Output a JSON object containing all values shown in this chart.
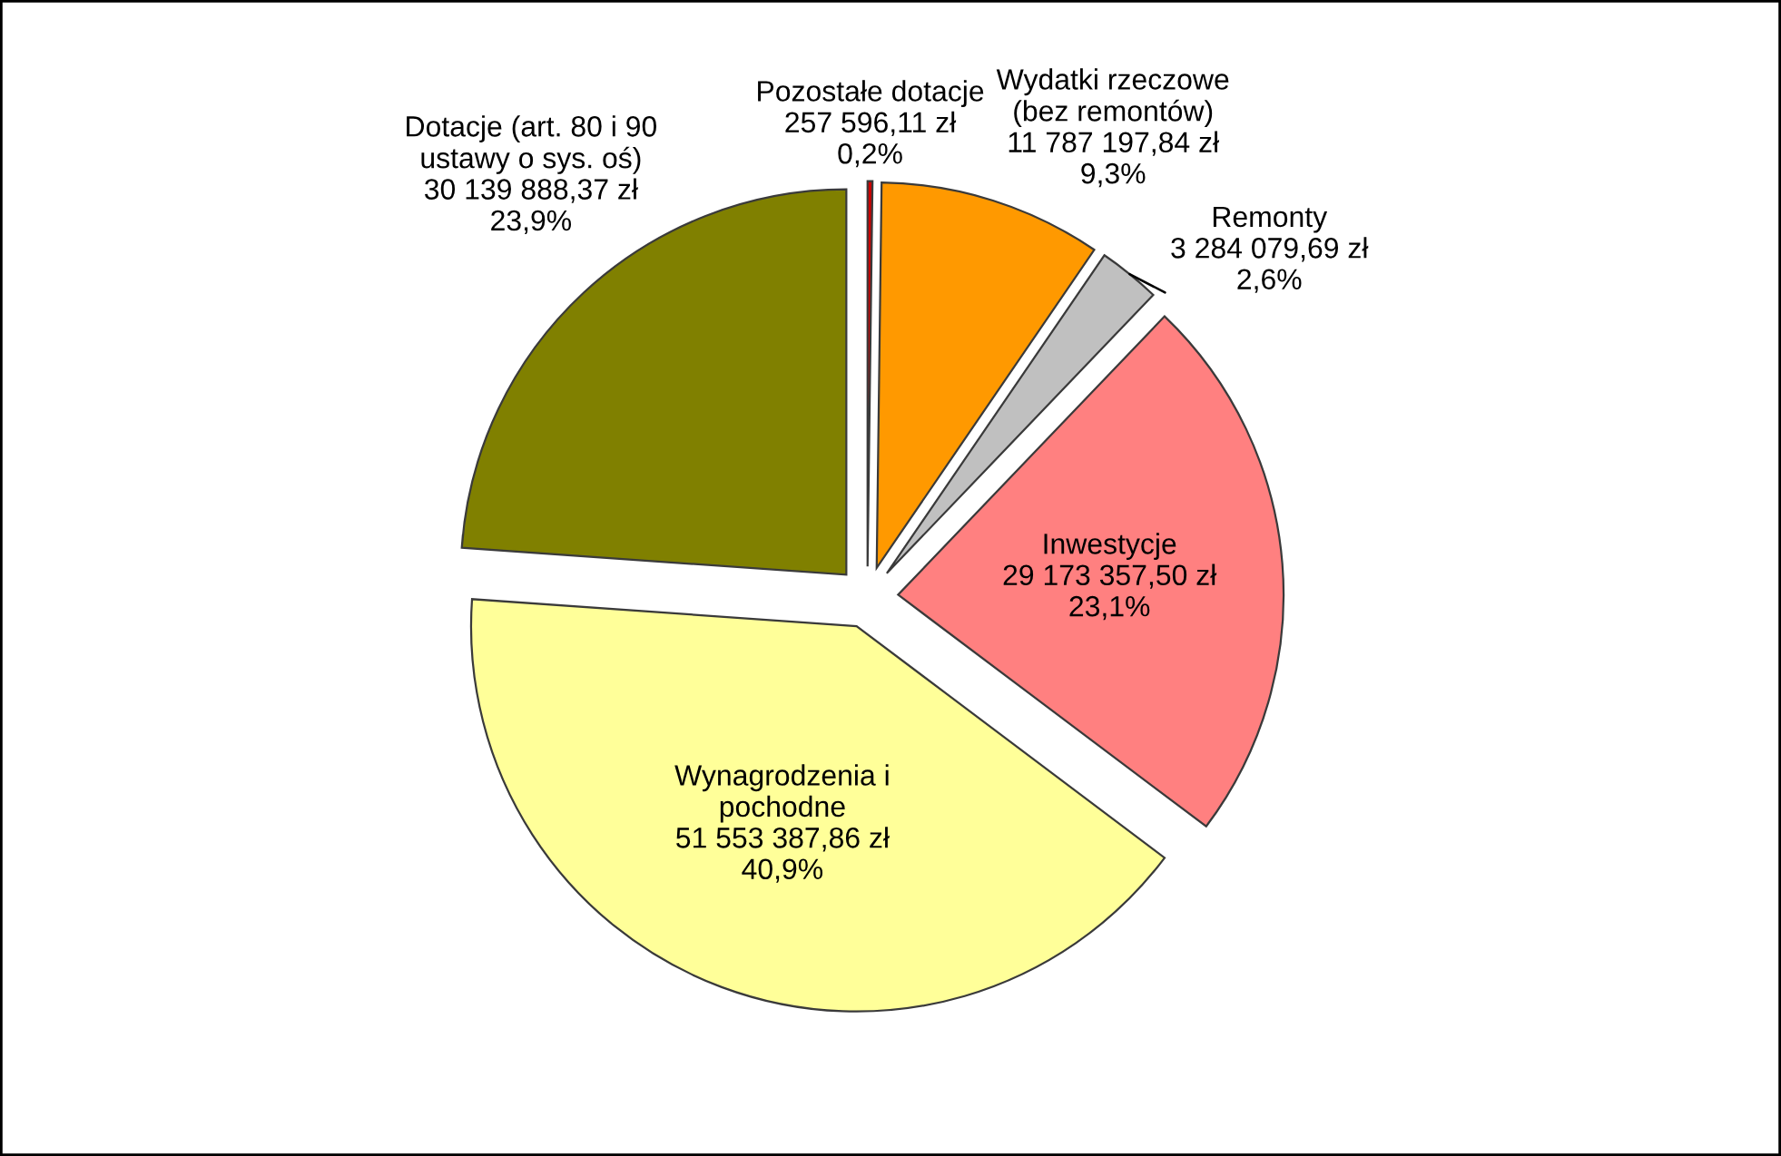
{
  "chart_data": {
    "type": "pie",
    "categories": [
      "Pozostałe dotacje",
      "Wydatki rzeczowe\n(bez remontów)",
      "Remonty",
      "Inwestycje",
      "Wynagrodzenia i\npochodne",
      "Dotacje (art. 80 i 90\nustawy o sys. oś)"
    ],
    "values": [
      257596.11,
      11787197.84,
      3284079.69,
      29173357.5,
      51553387.86,
      30139888.37
    ],
    "colors": [
      "#cc0000",
      "#ff9900",
      "#c0c0c0",
      "#ff8080",
      "#ffff99",
      "#808000"
    ],
    "value_labels": [
      "257 596,11 zł\n0,2%",
      "11 787 197,84 zł\n9,3%",
      "3 284 079,69 zł\n2,6%",
      "29 173 357,50 zł\n23,1%",
      "51 553 387,86 zł\n40,9%",
      "30 139 888,37 zł\n23,9%"
    ]
  }
}
